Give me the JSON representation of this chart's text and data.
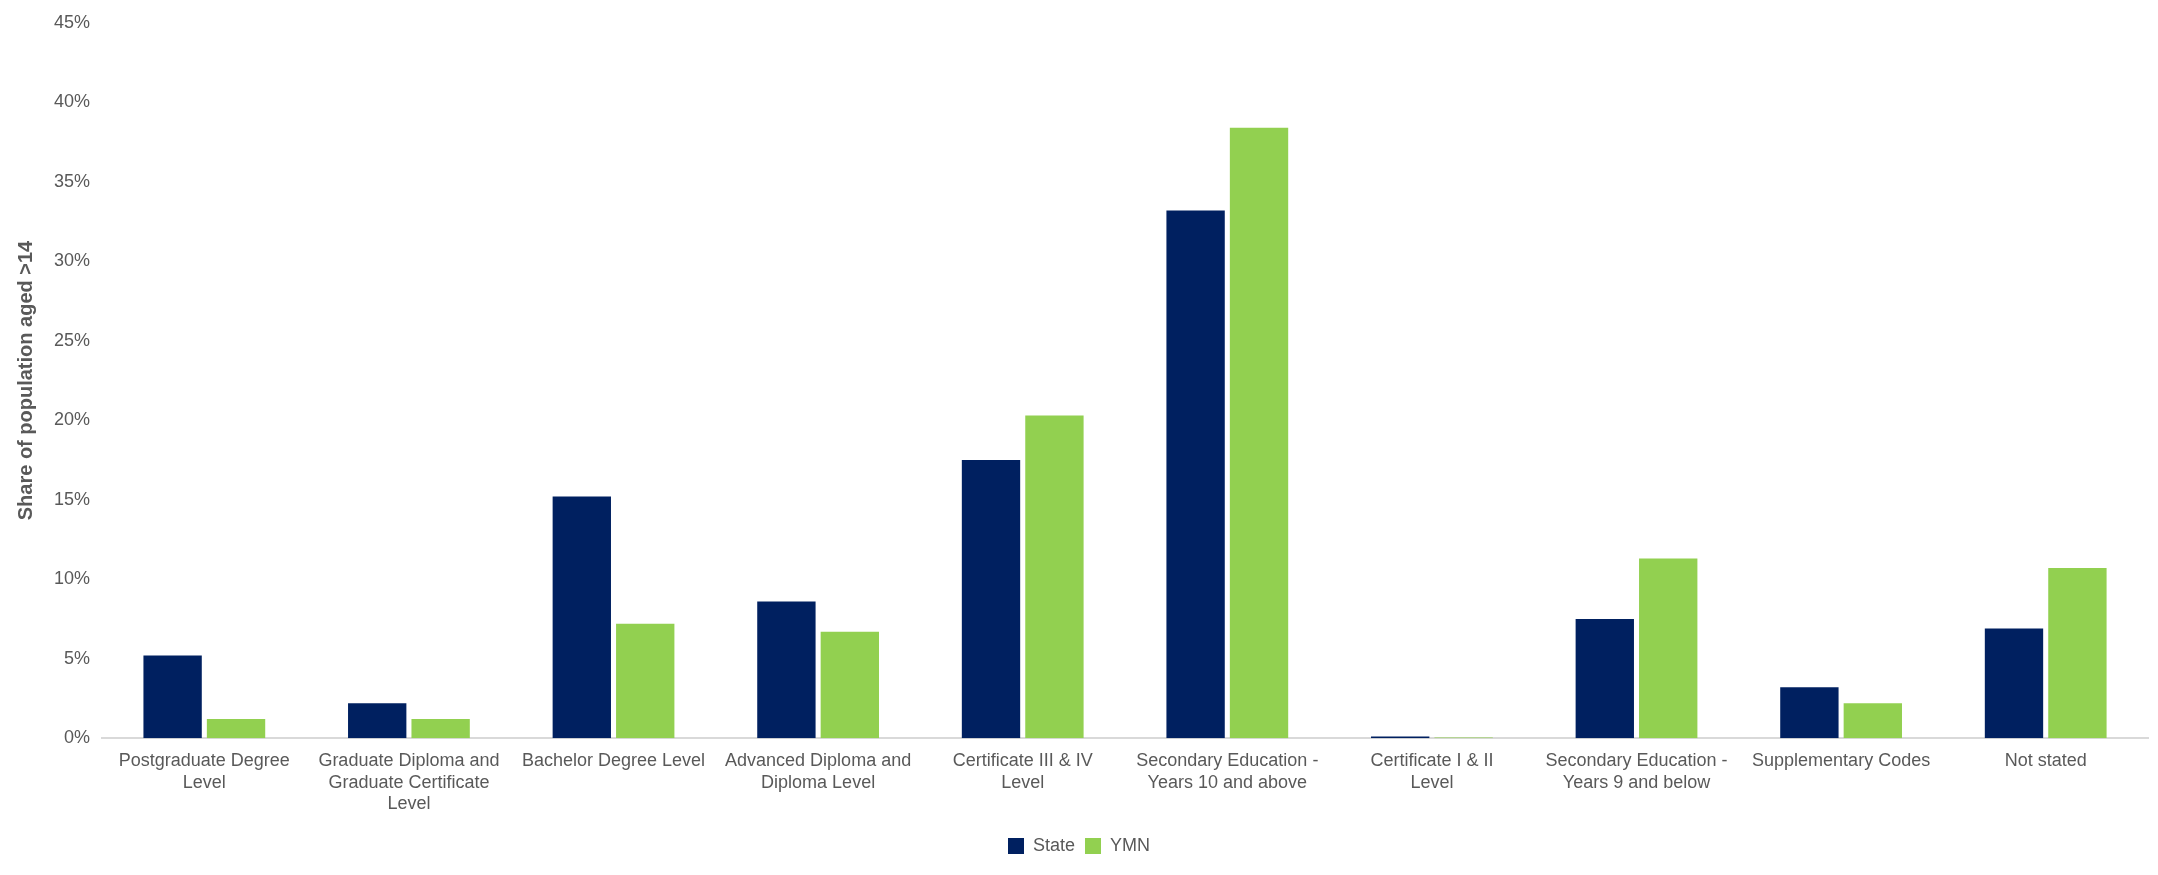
{
  "chart_data": {
    "type": "bar",
    "ylabel": "Share of population aged >14",
    "categories": [
      "Postgraduate Degree Level",
      "Graduate Diploma and Graduate Certificate Level",
      "Bachelor Degree Level",
      "Advanced Diploma and Diploma Level",
      "Certificate III & IV Level",
      "Secondary Education - Years 10 and above",
      "Certificate I & II Level",
      "Secondary Education - Years 9 and below",
      "Supplementary Codes",
      "Not stated"
    ],
    "series": [
      {
        "name": "State",
        "color": "#002060",
        "values": [
          5.2,
          2.2,
          15.2,
          8.6,
          17.5,
          33.2,
          0.1,
          7.5,
          3.2,
          6.9
        ]
      },
      {
        "name": "YMN",
        "color": "#92d050",
        "values": [
          1.2,
          1.2,
          7.2,
          6.7,
          20.3,
          38.4,
          0.05,
          11.3,
          2.2,
          10.7
        ]
      }
    ],
    "ylim": [
      0,
      45
    ],
    "yticks": [
      {
        "value": 0,
        "label": "0%"
      },
      {
        "value": 5,
        "label": "5%"
      },
      {
        "value": 10,
        "label": "10%"
      },
      {
        "value": 15,
        "label": "15%"
      },
      {
        "value": 20,
        "label": "20%"
      },
      {
        "value": 25,
        "label": "25%"
      },
      {
        "value": 30,
        "label": "30%"
      },
      {
        "value": 35,
        "label": "35%"
      },
      {
        "value": 40,
        "label": "40%"
      },
      {
        "value": 45,
        "label": "45%"
      }
    ],
    "grid": false,
    "legend": "bottom"
  }
}
